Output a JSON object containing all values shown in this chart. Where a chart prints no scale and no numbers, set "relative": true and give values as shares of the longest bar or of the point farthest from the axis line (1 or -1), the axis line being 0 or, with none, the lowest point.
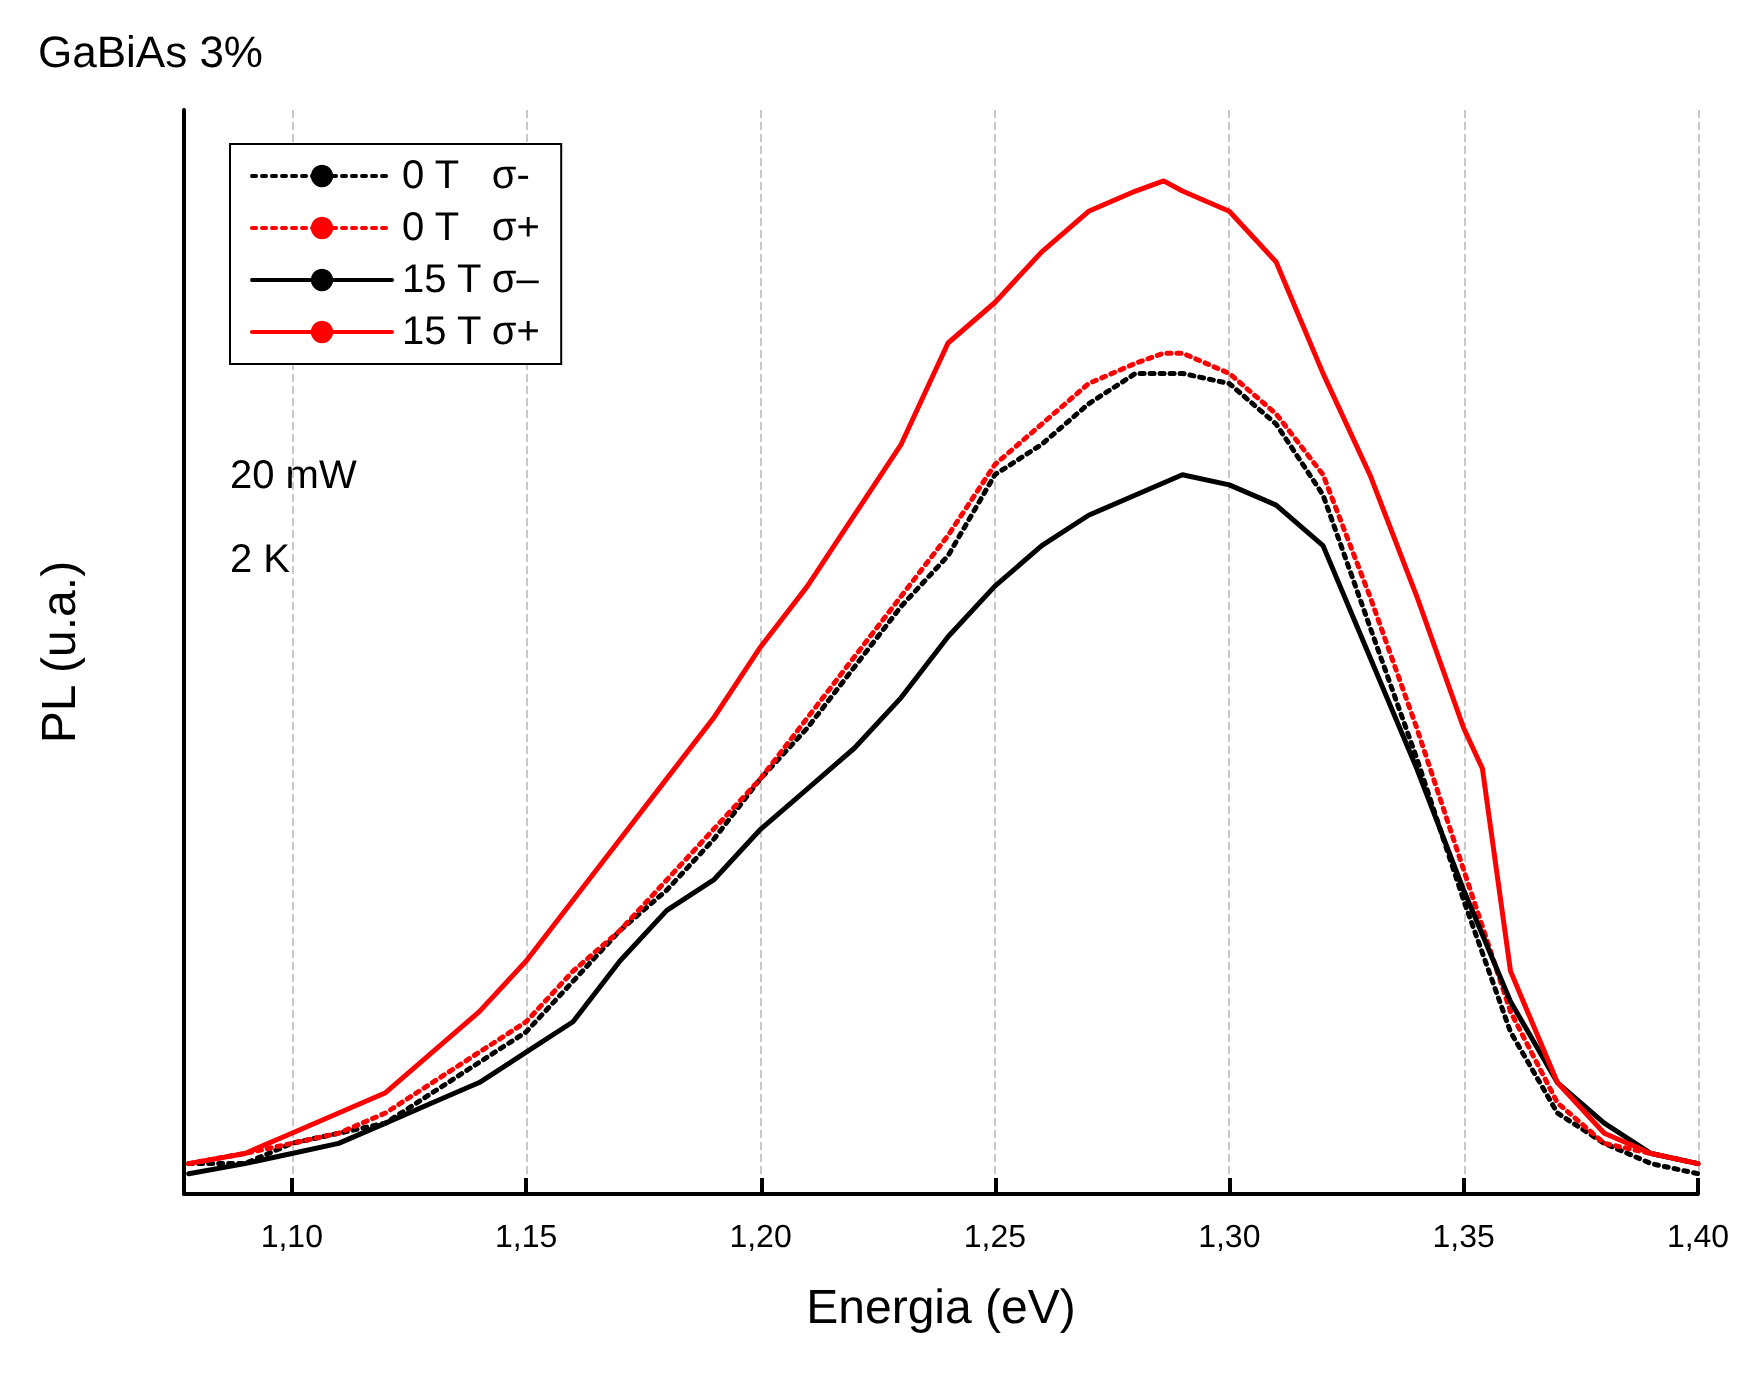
{
  "chart_data": {
    "type": "line",
    "title": "GaBiAs 3%",
    "xlabel": "Energia (eV)",
    "ylabel": "PL (u.a.)",
    "relative": true,
    "annotations": [
      "20 mW",
      "2 K"
    ],
    "xlim": [
      1.077,
      1.4
    ],
    "xticks": [
      {
        "value": 1.1,
        "label": "1,10"
      },
      {
        "value": 1.15,
        "label": "1,15"
      },
      {
        "value": 1.2,
        "label": "1,20"
      },
      {
        "value": 1.25,
        "label": "1,25"
      },
      {
        "value": 1.3,
        "label": "1,30"
      },
      {
        "value": 1.35,
        "label": "1,35"
      },
      {
        "value": 1.4,
        "label": "1,40"
      }
    ],
    "grid": "x",
    "legend": "top left",
    "marker": "none",
    "series": [
      {
        "name": "0 T   σ-",
        "color": "#000000",
        "line_style": "dotted",
        "x": [
          1.078,
          1.09,
          1.1,
          1.11,
          1.12,
          1.13,
          1.14,
          1.15,
          1.16,
          1.17,
          1.18,
          1.19,
          1.2,
          1.21,
          1.22,
          1.23,
          1.24,
          1.25,
          1.26,
          1.27,
          1.28,
          1.286,
          1.29,
          1.3,
          1.31,
          1.32,
          1.33,
          1.34,
          1.35,
          1.36,
          1.37,
          1.38,
          1.39,
          1.4
        ],
        "values": [
          0.03,
          0.03,
          0.05,
          0.06,
          0.07,
          0.1,
          0.13,
          0.16,
          0.21,
          0.26,
          0.3,
          0.35,
          0.41,
          0.46,
          0.52,
          0.58,
          0.63,
          0.71,
          0.74,
          0.78,
          0.81,
          0.81,
          0.81,
          0.8,
          0.76,
          0.69,
          0.56,
          0.43,
          0.29,
          0.16,
          0.08,
          0.05,
          0.03,
          0.02
        ]
      },
      {
        "name": "0 T   σ+",
        "color": "#ff0000",
        "line_style": "dotted",
        "x": [
          1.078,
          1.09,
          1.1,
          1.11,
          1.12,
          1.13,
          1.14,
          1.15,
          1.16,
          1.17,
          1.18,
          1.19,
          1.2,
          1.21,
          1.22,
          1.23,
          1.24,
          1.25,
          1.26,
          1.27,
          1.28,
          1.286,
          1.29,
          1.3,
          1.31,
          1.32,
          1.33,
          1.34,
          1.35,
          1.36,
          1.37,
          1.38,
          1.39,
          1.4
        ],
        "values": [
          0.03,
          0.04,
          0.05,
          0.06,
          0.08,
          0.11,
          0.14,
          0.17,
          0.22,
          0.26,
          0.31,
          0.36,
          0.41,
          0.47,
          0.53,
          0.59,
          0.65,
          0.72,
          0.76,
          0.8,
          0.82,
          0.83,
          0.83,
          0.81,
          0.77,
          0.71,
          0.59,
          0.46,
          0.32,
          0.18,
          0.09,
          0.05,
          0.04,
          0.03
        ]
      },
      {
        "name": "15 T σ–",
        "color": "#000000",
        "line_style": "solid",
        "x": [
          1.078,
          1.09,
          1.1,
          1.11,
          1.12,
          1.13,
          1.14,
          1.15,
          1.16,
          1.17,
          1.18,
          1.19,
          1.2,
          1.21,
          1.22,
          1.23,
          1.24,
          1.25,
          1.26,
          1.27,
          1.28,
          1.29,
          1.3,
          1.31,
          1.32,
          1.33,
          1.34,
          1.35,
          1.36,
          1.37,
          1.38,
          1.39,
          1.4
        ],
        "values": [
          0.02,
          0.03,
          0.04,
          0.05,
          0.07,
          0.09,
          0.11,
          0.14,
          0.17,
          0.23,
          0.28,
          0.31,
          0.36,
          0.4,
          0.44,
          0.49,
          0.55,
          0.6,
          0.64,
          0.67,
          0.69,
          0.71,
          0.7,
          0.68,
          0.64,
          0.53,
          0.42,
          0.3,
          0.19,
          0.11,
          0.07,
          0.04,
          0.03
        ]
      },
      {
        "name": "15 T σ+",
        "color": "#ff0000",
        "line_style": "solid",
        "x": [
          1.078,
          1.09,
          1.1,
          1.11,
          1.12,
          1.13,
          1.14,
          1.15,
          1.16,
          1.17,
          1.18,
          1.19,
          1.2,
          1.21,
          1.22,
          1.23,
          1.24,
          1.25,
          1.26,
          1.27,
          1.28,
          1.286,
          1.29,
          1.3,
          1.31,
          1.32,
          1.33,
          1.34,
          1.35,
          1.354,
          1.36,
          1.37,
          1.38,
          1.39,
          1.4
        ],
        "values": [
          0.03,
          0.04,
          0.06,
          0.08,
          0.1,
          0.14,
          0.18,
          0.23,
          0.29,
          0.35,
          0.41,
          0.47,
          0.54,
          0.6,
          0.67,
          0.74,
          0.84,
          0.88,
          0.93,
          0.97,
          0.99,
          1.0,
          0.99,
          0.97,
          0.92,
          0.81,
          0.71,
          0.59,
          0.46,
          0.42,
          0.22,
          0.11,
          0.06,
          0.04,
          0.03
        ]
      }
    ]
  }
}
